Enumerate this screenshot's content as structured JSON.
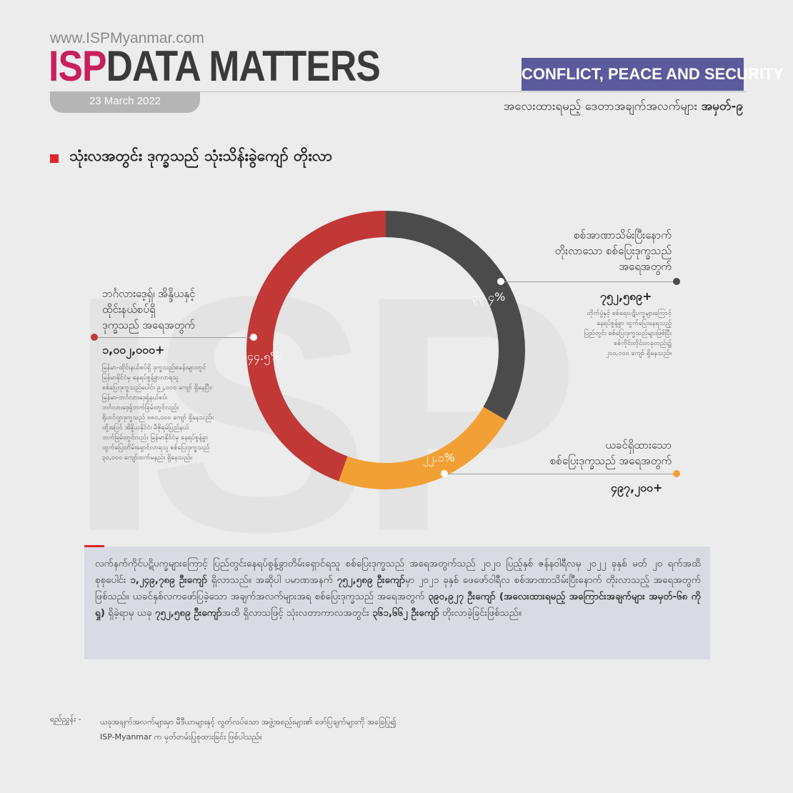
{
  "header": {
    "url": "www.ISPMyanmar.com",
    "logo_isp": "ISP",
    "logo_rest": "DATA MATTERS",
    "date": "23 March 2022",
    "category": "CONFLICT, PEACE AND SECURITY",
    "series_label": "အလေးထားရမည့် ဒေတာအချက်အလက်များ",
    "series_number": "အမှတ်-၉"
  },
  "watermark": "ISP",
  "section_title": "သုံးလအတွင်း ဒုက္ခသည် သုံးသိန်းခွဲကျော် တိုးလာ",
  "chart_data": {
    "type": "pie",
    "subtype": "donut",
    "title": "",
    "slices": [
      {
        "label_lines": [
          "စစ်အာဏာသိမ်းပြီးနောက်",
          "တိုးလာသော စစ်ပြေးဒုက္ခသည်",
          "အရေအတွက်"
        ],
        "value_label": "၇၅၂,၅၈၉+",
        "percent_label": "၃၃.၄%",
        "percent": 33.4,
        "color": "#4b4b4b",
        "note_lines": [
          "တိုက်ပွဲနှင့် စစ်ရေးပဋိပက္ခများကြောင့်",
          "နေရပ်စွန့်ခွာ ထွက်ပြေးနေရသည့်",
          "ပြည်တွင်း စစ်ပြေးဒုက္ခသည်များဖြစ်ပြီး",
          "စစ်ကိုင်းတိုင်းတခုတည်း၌",
          "၂၀၀,၀၀၀ ကျော် ရှိနေသည်။"
        ]
      },
      {
        "label_lines": [
          "ယခင်ရှိထားသော",
          "စစ်ပြေးဒုက္ခသည် အရေအတွက်"
        ],
        "value_label": "၄၉၇,၂၀၀+",
        "percent_label": "၂၂.၁%",
        "percent": 22.1,
        "color": "#f2a036",
        "note_lines": []
      },
      {
        "label_lines": [
          "ဘင်္ဂလားဒေ့ရှ်၊ အိန္ဒိယနှင့်",
          "ထိုင်းနယ်စပ်ရှိ",
          "ဒုက္ခသည် အရေအတွက်"
        ],
        "value_label": "၁,၀၀၂,၀၀၀+",
        "percent_label": "၄၄.၅%",
        "percent": 44.5,
        "color": "#c13837",
        "note_lines": [
          "မြန်မာ-ထိုင်းနယ်စပ်ရှိ ဒုက္ခသည်စခန်းများတွင်",
          "မြန်မာနိုင်ငံမှ နေရပ်စွန့်ခွာလာရသူ",
          "စစ်ပြေးဒုက္ခသည်ပေါင်း ၉၂,၀၀၀ ကျော် ရှိနေပြီး၊",
          "မြန်မာ-ဘင်္ဂလားဒေ့ရှ်နယ်စပ်၊",
          "ဘင်္ဂလားဒေ့ရှ်ဘက်ခြမ်းတွင်လည်း",
          "ရိုဟင်ဂျာဒုက္ခသည် ၈၈၀,၀၀၀ ကျော် ရှိနေသည်။",
          "ထို့အပြင် အိန္ဒိယနိုင်ငံ၊ မီဇိုရမ်ပြည်နယ်",
          "ဘက်ခြမ်းတွင်လည်း မြန်မာနိုင်ငံမှ နေရပ်စွန့်ခွာ",
          "ထွက်ပြေးတိမ်းရှောင်လာရသူ စစ်ပြေးဒုက္ခသည်",
          "၃၀,၀၀၀ ကျော်ထက်မနည်း ရှိနေသည်။"
        ]
      }
    ]
  },
  "summary": {
    "p1": "လက်နက်ကိုင်ပဋိပက္ခများကြောင့် ပြည်တွင်းနေရပ်စွန့်ခွာတိမ်းရှောင်ရသူ စစ်ပြေးဒုက္ခသည် အရေအတွက်သည် ၂၀၂၀ ပြည့်နှစ် ဇန်နဝါရီလမှ ၂၀၂၂ ခုနှစ် မတ် ၂၀ ရက်အထိ စုစုပေါင်း ",
    "b1": "၁,၂၄၉,၇၈၉ ဦးကျော်",
    "p2": " ရှိလာသည်။ အဆိုပါ ပမာဏအနက် ",
    "b2": "၇၅၂,၅၈၉  ဦးကျော်",
    "p3": "မှာ ၂၀၂၁ ခုနှစ် ဖေဖော်ဝါရီလ စစ်အာဏာသိမ်းပြီးနောက် တိုးလာသည့် အရေအတွက်ဖြစ်သည်။ ယခင်နှစ်လကဖော်ပြခဲ့သော အချက်အလက်များအရ စစ်ပြေးဒုက္ခသည် အရေအတွက် ",
    "b3": "၃၉၀,၉၂၇ ဦးကျော် (အလေးထားရမည့် အကြောင်းအချက်များ အမှတ်-၆၈ ကိုရှု)",
    "p4": " ရှိခဲ့ရာမှ ယခု ",
    "b4": "၇၅၂,၅၈၉ ဦးကျော်",
    "p5": "အထိ ရှိလာသဖြင့် သုံးလတာကာလအတွင်း ",
    "b5": "၃၆၁,၆၆၂ ဦးကျော်",
    "p6": " တိုးလာခဲ့ခြင်းဖြစ်သည်။"
  },
  "source": {
    "label": "ရည်ညွှန်း -",
    "line1": "ယခုအချက်အလက်များမှာ မီဒီယာများနှင့် လွတ်လပ်သော အဖွဲ့အစည်းများ၏ ဖော်ပြချက်များကို အခြေပြု၍",
    "line2": "ISP-Myanmar က မှတ်တမ်းပြုစုထားခြင်း ဖြစ်ပါသည်။"
  }
}
